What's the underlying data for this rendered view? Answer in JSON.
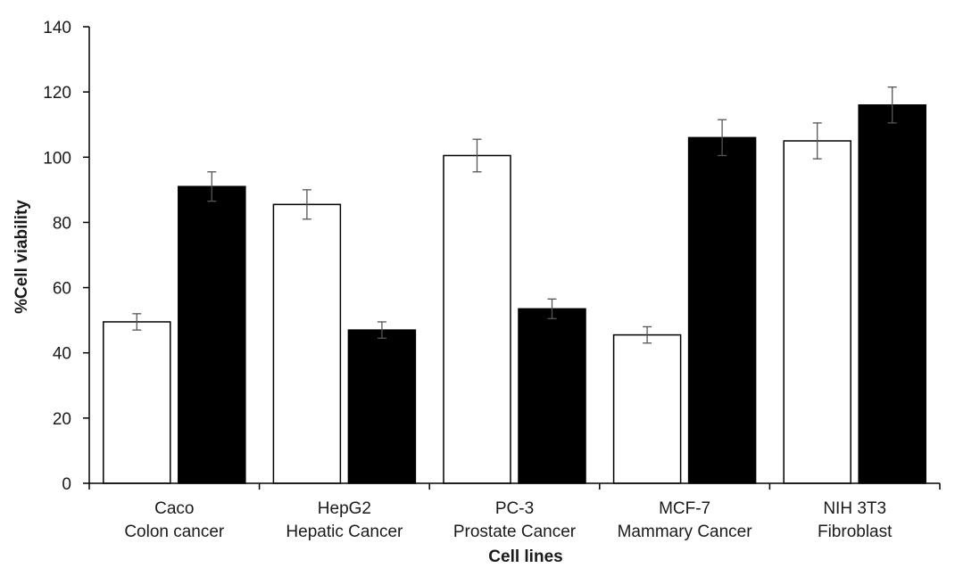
{
  "chart_data": {
    "type": "bar",
    "xlabel": "Cell lines",
    "ylabel": "%Cell viability",
    "ylim": [
      0,
      140
    ],
    "yticks": [
      0,
      20,
      40,
      60,
      80,
      100,
      120,
      140
    ],
    "grid": false,
    "legend": "none",
    "categories": [
      {
        "line1": "Caco",
        "line2": "Colon cancer"
      },
      {
        "line1": "HepG2",
        "line2": "Hepatic Cancer"
      },
      {
        "line1": "PC-3",
        "line2": "Prostate Cancer"
      },
      {
        "line1": "MCF-7",
        "line2": "Mammary Cancer"
      },
      {
        "line1": "NIH 3T3",
        "line2": "Fibroblast"
      }
    ],
    "series": [
      {
        "color": "#ffffff",
        "values": [
          49.5,
          85.5,
          100.5,
          45.5,
          105
        ],
        "errors": [
          2.5,
          4.5,
          5,
          2.5,
          5.5
        ]
      },
      {
        "color": "#000000",
        "values": [
          91,
          47,
          53.5,
          106,
          116
        ],
        "errors": [
          4.5,
          2.5,
          3,
          5.5,
          5.5
        ]
      }
    ]
  }
}
